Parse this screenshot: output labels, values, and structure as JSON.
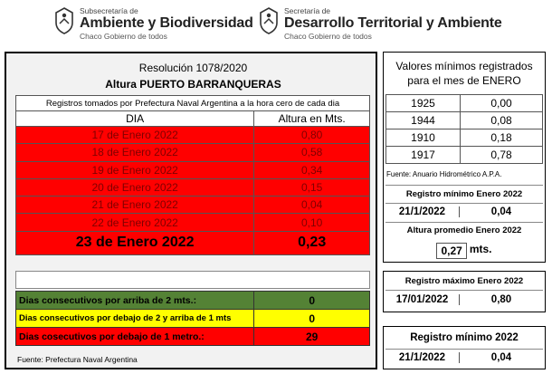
{
  "header": {
    "logo_left": {
      "small": "Subsecretaría de",
      "big": "Ambiente y Biodiversidad",
      "tag": "Chaco Gobierno de todos"
    },
    "logo_right": {
      "small": "Secretaría de",
      "big": "Desarrollo Territorial y Ambiente",
      "tag": "Chaco Gobierno de todos"
    }
  },
  "left": {
    "resolution": "Resolución 1078/2020",
    "title": "Altura PUERTO BARRANQUERAS",
    "note": "Registros tomados por Prefectura Naval Argentina a la hora cero de cada dia",
    "col_dia": "DIA",
    "col_altura": "Altura en Mts.",
    "rows": [
      {
        "dia": "17 de Enero 2022",
        "altura": "0,80"
      },
      {
        "dia": "18 de Enero 2022",
        "altura": "0,58"
      },
      {
        "dia": "19 de Enero 2022",
        "altura": "0,34"
      },
      {
        "dia": "20 de Enero 2022",
        "altura": "0,15"
      },
      {
        "dia": "21 de Enero 2022",
        "altura": "0,04"
      },
      {
        "dia": "22 de Enero 2022",
        "altura": "0,10"
      }
    ],
    "final": {
      "dia": "23 de Enero 2022",
      "altura": "0,23"
    },
    "stats": {
      "arriba2_label": "Dias consecutivos por arriba de 2 mts.:",
      "arriba2_value": "0",
      "entre_label": "Dias consecutivos por debajo de 2 y arriba de 1 mts",
      "entre_value": "0",
      "debajo1_label": "Dias cosecutivos por debajo de 1 metro.:",
      "debajo1_value": "29"
    },
    "fuente": "Fuente: Prefectura Naval Argentina"
  },
  "right": {
    "valores_title_1": "Valores mínimos registrados",
    "valores_title_2": "para el mes de ENERO",
    "valores": [
      {
        "year": "1925",
        "value": "0,00"
      },
      {
        "year": "1944",
        "value": "0,08"
      },
      {
        "year": "1910",
        "value": "0,18"
      },
      {
        "year": "1917",
        "value": "0,78"
      }
    ],
    "fuente_anuario": "Fuente: Anuario Hidrométrico A.P.A.",
    "reg_min_label": "Registro mínimo Enero 2022",
    "reg_min_date": "21/1/2022",
    "reg_min_value": "0,04",
    "promedio_label": "Altura promedio Enero 2022",
    "promedio_value": "0,27",
    "promedio_unit": "mts.",
    "reg_max_label": "Registro máximo Enero 2022",
    "reg_max_date": "17/01/2022",
    "reg_max_value": "0,80",
    "reg_min2_label": "Registro mínimo 2022",
    "reg_min2_date": "21/1/2022",
    "reg_min2_value": "0,04"
  },
  "colors": {
    "red": "#ff0000",
    "green": "#548235",
    "yellow": "#ffff00",
    "panel_bg": "#f2f2f2"
  }
}
